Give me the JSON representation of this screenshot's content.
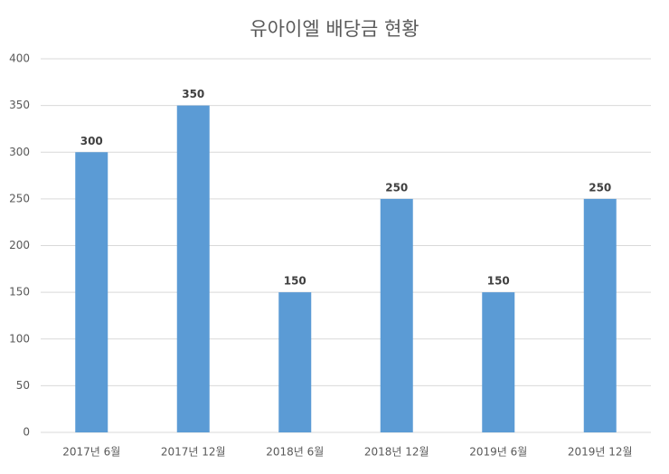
{
  "chart_data": {
    "type": "bar",
    "title": "유아이엘 배당금 현황",
    "categories": [
      "2017년 6월",
      "2017년 12월",
      "2018년 6월",
      "2018년 12월",
      "2019년 6월",
      "2019년 12월"
    ],
    "values": [
      300,
      350,
      150,
      250,
      150,
      250
    ],
    "color": "#5b9bd5",
    "ylim": [
      0,
      400
    ],
    "yticks": [
      0,
      50,
      100,
      150,
      200,
      250,
      300,
      350,
      400
    ],
    "grid": true,
    "data_labels": true
  }
}
